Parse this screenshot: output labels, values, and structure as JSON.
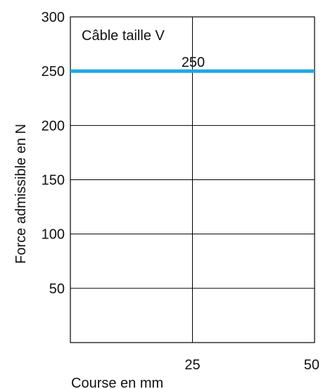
{
  "chart_data": {
    "type": "line",
    "annotation": "Câble taille V",
    "xlabel": "Course en mm",
    "ylabel": "Force admissible en N",
    "xlim": [
      0,
      50
    ],
    "ylim": [
      0,
      300
    ],
    "x_ticks": [
      25,
      50
    ],
    "y_ticks": [
      50,
      100,
      150,
      200,
      250,
      300
    ],
    "grid": true,
    "series": [
      {
        "x": [
          0,
          50
        ],
        "y": [
          250,
          250
        ],
        "color": "#1fa7e1",
        "value_label": "250"
      }
    ]
  }
}
